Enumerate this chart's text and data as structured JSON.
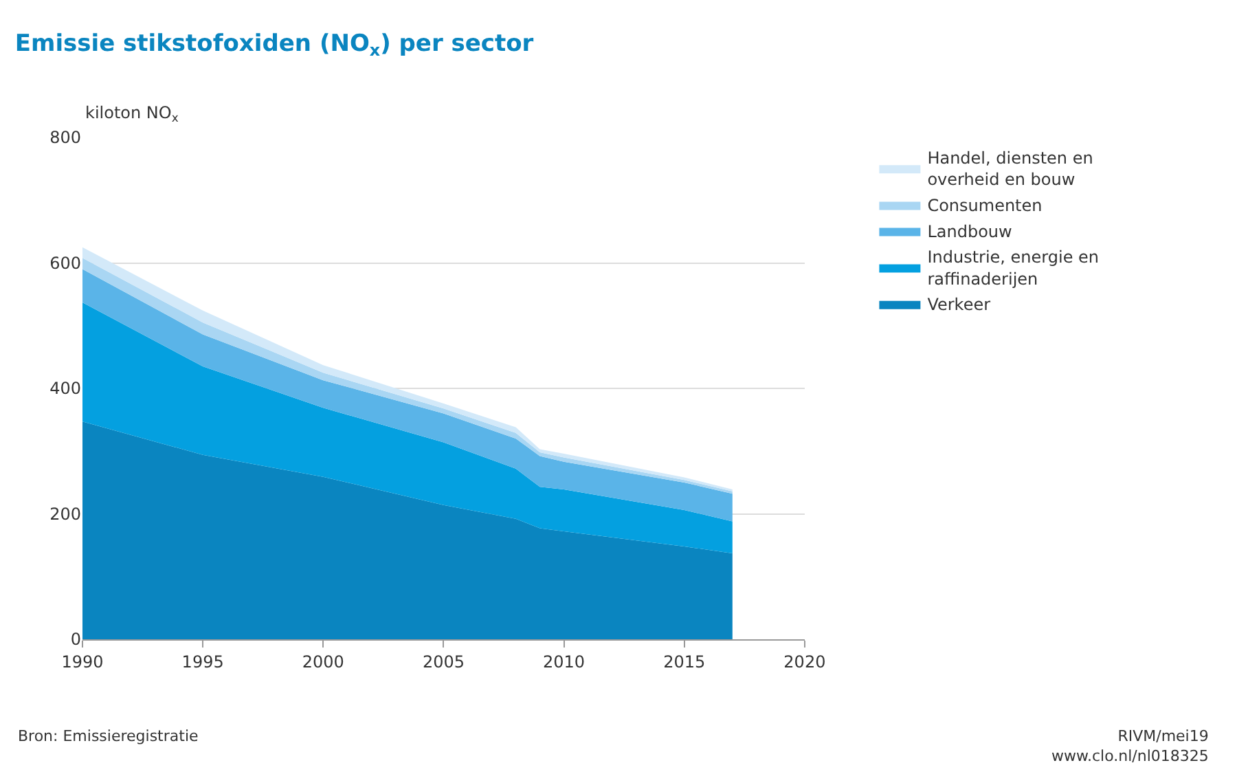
{
  "chart_data": {
    "type": "area",
    "stacked": true,
    "title": "Emissie stikstofoxiden (NO$_{x}$) per sector",
    "ylabel": "kiloton NO$_{x}$",
    "x": [
      1990,
      1995,
      2000,
      2005,
      2008,
      2009,
      2010,
      2015,
      2017
    ],
    "series": [
      {
        "name": "Verkeer",
        "color": "#0a85c0",
        "values": [
          347,
          294,
          259,
          214,
          192,
          177,
          172,
          148,
          137
        ]
      },
      {
        "name": "Industrie, energie en\nraffinaderijen",
        "color": "#04a0e0",
        "values": [
          190,
          141,
          110,
          100,
          80,
          66,
          67,
          58,
          51
        ]
      },
      {
        "name": "Landbouw",
        "color": "#5ab4e8",
        "values": [
          53,
          51,
          44,
          46,
          48,
          49,
          44,
          44,
          44
        ]
      },
      {
        "name": "Consumenten",
        "color": "#a9d6f3",
        "values": [
          18,
          19,
          12,
          8,
          9,
          6,
          7,
          4,
          4
        ]
      },
      {
        "name": "Handel, diensten en\noverheid en bouw",
        "color": "#d3e9f9",
        "values": [
          17,
          19,
          12,
          8,
          9,
          5,
          6,
          4,
          3
        ]
      }
    ],
    "xlim": [
      1990,
      2020
    ],
    "xticks": [
      1990,
      1995,
      2000,
      2005,
      2010,
      2015,
      2020
    ],
    "ylim": [
      0,
      800
    ],
    "yticks": [
      0,
      200,
      400,
      600,
      800
    ],
    "grid": "y",
    "legend": "right",
    "annotations": [
      "Bron: Emissieregistratie",
      "RIVM/mei19\nwww.clo.nl/nl018325"
    ]
  }
}
